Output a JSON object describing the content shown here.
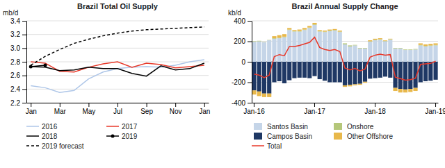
{
  "chart_data": [
    {
      "type": "line",
      "title": "Brazil Total Oil Supply",
      "y_label": "mb/d",
      "categories": [
        "Jan",
        null,
        "Mar",
        null,
        "May",
        null,
        "Jul",
        null,
        "Sep",
        null,
        "Nov",
        null,
        "Jan"
      ],
      "series": [
        {
          "name": "2016",
          "color": "#aec6e8",
          "values": [
            2.45,
            2.42,
            2.35,
            2.38,
            2.55,
            2.65,
            2.7,
            2.72,
            2.73,
            2.72,
            2.75,
            2.8,
            2.83
          ]
        },
        {
          "name": "2017",
          "color": "#e8392a",
          "values": [
            2.8,
            2.78,
            2.66,
            2.65,
            2.72,
            2.77,
            2.8,
            2.72,
            2.78,
            2.76,
            2.71,
            2.73,
            2.75
          ]
        },
        {
          "name": "2018",
          "color": "#000000",
          "values": [
            2.73,
            2.72,
            2.67,
            2.68,
            2.72,
            2.7,
            2.7,
            2.63,
            2.59,
            2.74,
            2.68,
            2.7,
            2.78
          ]
        },
        {
          "name": "2019",
          "color": "#000000",
          "marker": "circle",
          "values": [
            2.73,
            2.75,
            null,
            null,
            null,
            null,
            null,
            null,
            null,
            null,
            null,
            null,
            null
          ]
        },
        {
          "name": "2019 forecast",
          "color": "#000000",
          "line_style": "dashed",
          "values": [
            2.75,
            2.88,
            2.98,
            3.07,
            3.13,
            3.18,
            3.22,
            3.25,
            3.27,
            3.28,
            3.29,
            3.3,
            3.31
          ]
        }
      ],
      "ylim": [
        2.2,
        3.4
      ],
      "yticks": [
        2.2,
        2.4,
        2.6,
        2.8,
        {
          "value": 3.0,
          "label": "3.0"
        },
        3.2,
        3.4
      ],
      "grid": true,
      "legend": "bottom"
    },
    {
      "type": "bar",
      "stacked": true,
      "title": "Brazil Annual Supply Change",
      "y_label": "kb/d",
      "categories": [
        "Jan-16",
        null,
        null,
        null,
        null,
        null,
        null,
        null,
        null,
        null,
        null,
        null,
        "Jan-17",
        null,
        null,
        null,
        null,
        null,
        null,
        null,
        null,
        null,
        null,
        null,
        "Jan-18",
        null,
        null,
        null,
        null,
        null,
        null,
        null,
        null,
        null,
        null,
        null,
        "Jan-19"
      ],
      "series": [
        {
          "name": "Santos Basin",
          "color": "#c5d5e8",
          "values": [
            195,
            200,
            190,
            210,
            225,
            230,
            240,
            310,
            295,
            295,
            310,
            330,
            360,
            295,
            290,
            300,
            305,
            290,
            170,
            150,
            160,
            130,
            130,
            195,
            210,
            215,
            200,
            215,
            130,
            130,
            115,
            115,
            120,
            160,
            150,
            155,
            160
          ]
        },
        {
          "name": "Onshore",
          "color": "#b5c77a",
          "values": [
            5,
            5,
            3,
            3,
            5,
            5,
            5,
            5,
            5,
            5,
            5,
            5,
            5,
            5,
            5,
            5,
            5,
            5,
            10,
            10,
            5,
            5,
            5,
            5,
            5,
            5,
            5,
            5,
            5,
            5,
            5,
            5,
            5,
            5,
            5,
            5,
            5
          ]
        },
        {
          "name": "Campos Basin",
          "color": "#1f3864",
          "values": [
            -280,
            -290,
            -310,
            -310,
            -200,
            -190,
            -210,
            -180,
            -160,
            -155,
            -155,
            -160,
            -140,
            -170,
            -185,
            -200,
            -200,
            -200,
            -230,
            -225,
            -220,
            -215,
            -195,
            -165,
            -160,
            -155,
            -145,
            -155,
            -255,
            -265,
            -270,
            -265,
            -255,
            -200,
            -190,
            -185,
            -175
          ]
        },
        {
          "name": "Other Offshore",
          "color": "#e8b84b",
          "values": [
            -40,
            -45,
            -35,
            -35,
            20,
            25,
            25,
            15,
            10,
            15,
            15,
            15,
            15,
            10,
            10,
            10,
            10,
            10,
            -15,
            -15,
            -10,
            -10,
            -10,
            10,
            10,
            10,
            5,
            5,
            -30,
            -35,
            -30,
            -30,
            -30,
            15,
            15,
            15,
            15
          ]
        },
        {
          "name": "Total",
          "type": "line",
          "color": "#e8392a",
          "values": [
            -120,
            -130,
            -155,
            -130,
            50,
            70,
            60,
            150,
            150,
            160,
            175,
            190,
            240,
            140,
            120,
            110,
            120,
            100,
            -60,
            -80,
            -65,
            -90,
            -70,
            45,
            65,
            75,
            65,
            70,
            -150,
            -165,
            -180,
            -175,
            -160,
            -25,
            -20,
            -15,
            5
          ]
        }
      ],
      "ylim": [
        -400,
        400
      ],
      "yticks": [
        -400,
        -200,
        0,
        200,
        400
      ],
      "grid": true,
      "legend": "bottom"
    }
  ]
}
